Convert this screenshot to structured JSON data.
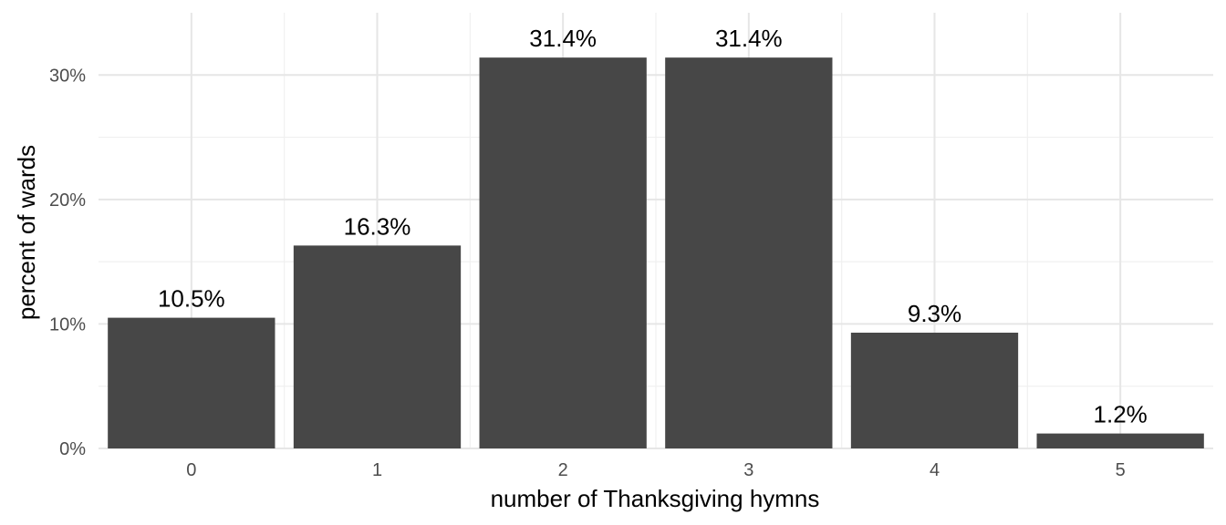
{
  "chart_data": {
    "type": "bar",
    "categories": [
      "0",
      "1",
      "2",
      "3",
      "4",
      "5"
    ],
    "values": [
      10.5,
      16.3,
      31.4,
      31.4,
      9.3,
      1.2
    ],
    "data_labels": [
      "10.5%",
      "16.3%",
      "31.4%",
      "31.4%",
      "9.3%",
      "1.2%"
    ],
    "xlabel": "number of Thanksgiving hymns",
    "ylabel": "percent of wards",
    "ylim": [
      0,
      35
    ],
    "yticks": [
      0,
      10,
      20,
      30
    ],
    "ytick_labels": [
      "0%",
      "10%",
      "20%",
      "30%"
    ],
    "grid": true,
    "legend": "none",
    "colors": {
      "bar": "#474747",
      "grid": "#e6e6e6",
      "background": "#ffffff"
    }
  }
}
